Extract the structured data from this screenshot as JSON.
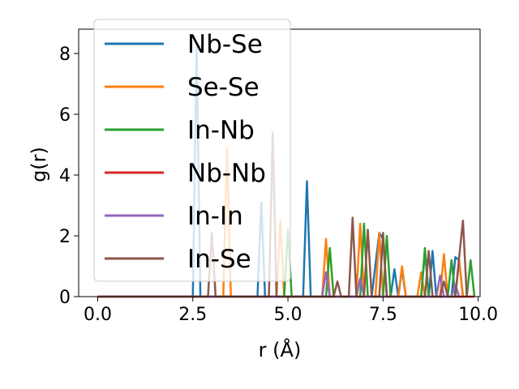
{
  "chart_data": {
    "type": "line",
    "xlabel": "r (Å)",
    "ylabel": "g(r)",
    "xlim": [
      -0.5,
      10.05
    ],
    "ylim": [
      0,
      8.8
    ],
    "xticks": [
      0.0,
      2.5,
      5.0,
      7.5,
      10.0
    ],
    "xtick_labels": [
      "0.0",
      "2.5",
      "5.0",
      "7.5",
      "10.0"
    ],
    "yticks": [
      0,
      2,
      4,
      6,
      8
    ],
    "ytick_labels": [
      "0",
      "2",
      "4",
      "6",
      "8"
    ],
    "grid": false,
    "legend_position": "upper-left",
    "series": [
      {
        "name": "Nb-Se",
        "color": "#1f77b4",
        "x": [
          0.0,
          2.5,
          2.6,
          2.7,
          4.2,
          4.3,
          4.4,
          5.4,
          5.5,
          5.6,
          7.2,
          7.4,
          7.5,
          7.6,
          7.7,
          7.8,
          7.9,
          8.0,
          8.1,
          8.2,
          8.5,
          8.6,
          8.7,
          8.8,
          8.9,
          9.3,
          9.4,
          9.5,
          9.6
        ],
        "y": [
          0,
          0,
          8.3,
          0,
          0,
          3.1,
          0,
          0,
          3.8,
          0,
          0,
          2.1,
          1.9,
          0,
          0,
          0.9,
          0,
          0.9,
          0,
          0,
          0,
          1.5,
          0,
          1.5,
          0,
          0,
          1.3,
          1.2,
          0
        ]
      },
      {
        "name": "Se-Se",
        "color": "#ff7f0e",
        "x": [
          0.0,
          3.3,
          3.4,
          3.5,
          4.7,
          4.8,
          4.9,
          5.9,
          6.0,
          6.1,
          6.8,
          6.9,
          7.0,
          7.3,
          7.4,
          7.5,
          7.9,
          8.0,
          8.1,
          8.4,
          8.5,
          8.6,
          9.0,
          9.1,
          9.2,
          9.4,
          9.5,
          9.6
        ],
        "y": [
          0,
          0,
          4.9,
          0,
          0,
          2.5,
          0,
          0,
          1.9,
          0,
          0,
          2.4,
          0,
          0,
          2.1,
          0,
          0,
          1.0,
          0,
          0,
          0.8,
          0,
          0,
          1.4,
          0,
          0,
          1.2,
          0
        ]
      },
      {
        "name": "In-Nb",
        "color": "#2ca02c",
        "x": [
          0.0,
          4.9,
          5.0,
          5.1,
          6.0,
          6.1,
          6.2,
          6.9,
          7.0,
          7.1,
          7.5,
          7.6,
          7.7,
          8.5,
          8.6,
          8.7,
          9.2,
          9.3,
          9.4,
          9.7,
          9.8,
          9.9
        ],
        "y": [
          0,
          0,
          2.2,
          0,
          0,
          1.6,
          0,
          0,
          2.4,
          0,
          0,
          2.0,
          0,
          0,
          1.6,
          0,
          0,
          1.2,
          0,
          0,
          1.2,
          0
        ]
      },
      {
        "name": "Nb-Nb",
        "color": "#d62728",
        "x": [
          0.0,
          9.9
        ],
        "y": [
          0,
          0
        ]
      },
      {
        "name": "In-In",
        "color": "#9467bd",
        "x": [
          0.0,
          5.9,
          6.0,
          6.1,
          6.8,
          6.9,
          7.0,
          8.9,
          9.0,
          9.1,
          9.3,
          9.4,
          9.5
        ],
        "y": [
          0,
          0,
          0.8,
          0,
          0,
          0.6,
          0,
          0,
          0.7,
          0,
          0,
          0.4,
          0
        ]
      },
      {
        "name": "In-Se",
        "color": "#8c564b",
        "x": [
          0.0,
          2.9,
          3.0,
          3.1,
          4.5,
          4.6,
          4.7,
          6.2,
          6.3,
          6.4,
          6.6,
          6.7,
          6.8,
          7.0,
          7.1,
          7.2,
          7.4,
          7.5,
          7.6,
          8.6,
          8.7,
          8.8,
          9.0,
          9.1,
          9.2,
          9.4,
          9.5,
          9.6,
          9.7
        ],
        "y": [
          0,
          0,
          2.1,
          0,
          0,
          5.4,
          0,
          0,
          0.5,
          0,
          0,
          2.6,
          0,
          0,
          2.2,
          0,
          0,
          2.1,
          0,
          0,
          1.5,
          0,
          0,
          0.5,
          0,
          0,
          1.3,
          2.5,
          0
        ]
      }
    ]
  }
}
